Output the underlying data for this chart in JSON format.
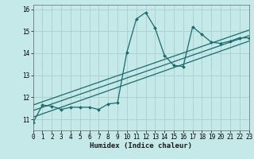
{
  "title": "",
  "xlabel": "Humidex (Indice chaleur)",
  "x_min": 0,
  "x_max": 23,
  "y_min": 10.5,
  "y_max": 16.2,
  "background_color": "#c5e8e8",
  "grid_color": "#a8d0d0",
  "line_color": "#1a6b6b",
  "noisy_x": [
    0,
    1,
    2,
    3,
    4,
    5,
    6,
    7,
    8,
    9,
    10,
    11,
    12,
    13,
    14,
    15,
    16,
    17,
    18,
    19,
    20,
    21,
    22,
    23
  ],
  "noisy_y": [
    10.85,
    11.65,
    11.6,
    11.45,
    11.55,
    11.55,
    11.55,
    11.45,
    11.7,
    11.75,
    14.05,
    15.55,
    15.85,
    15.15,
    13.9,
    13.45,
    13.4,
    15.2,
    14.85,
    14.5,
    14.45,
    14.55,
    14.7,
    14.7
  ],
  "trend1_x": [
    0,
    23
  ],
  "trend1_y": [
    11.1,
    14.55
  ],
  "trend2_x": [
    0,
    23
  ],
  "trend2_y": [
    11.4,
    14.8
  ],
  "trend3_x": [
    0,
    23
  ],
  "trend3_y": [
    11.65,
    15.05
  ],
  "yticks": [
    11,
    12,
    13,
    14,
    15,
    16
  ],
  "xticks": [
    0,
    1,
    2,
    3,
    4,
    5,
    6,
    7,
    8,
    9,
    10,
    11,
    12,
    13,
    14,
    15,
    16,
    17,
    18,
    19,
    20,
    21,
    22,
    23
  ]
}
